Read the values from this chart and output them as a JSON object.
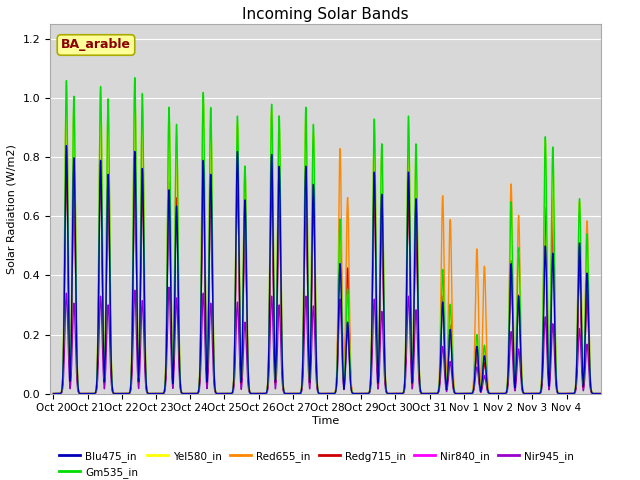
{
  "title": "Incoming Solar Bands",
  "xlabel": "Time",
  "ylabel": "Solar Radiation (W/m2)",
  "annotation": "BA_arable",
  "ylim": [
    0,
    1.25
  ],
  "background_color": "#d8d8d8",
  "legend_entries": [
    "Blu475_in",
    "Gm535_in",
    "Yel580_in",
    "Red655_in",
    "Redg715_in",
    "Nir840_in",
    "Nir945_in"
  ],
  "line_colors": [
    "#0000bb",
    "#00dd00",
    "#ffff00",
    "#ff8800",
    "#cc0000",
    "#ff00ff",
    "#9900cc"
  ],
  "line_widths": [
    1.0,
    1.0,
    1.0,
    1.0,
    1.0,
    1.0,
    1.0
  ],
  "xtick_labels": [
    "Oct 20",
    "Oct 21",
    "Oct 22",
    "Oct 23",
    "Oct 24",
    "Oct 25",
    "Oct 26",
    "Oct 27",
    "Oct 28",
    "Oct 29",
    "Oct 30",
    "Oct 31",
    "Nov 1",
    "Nov 2",
    "Nov 3",
    "Nov 4"
  ],
  "n_days": 16,
  "peak_heights": {
    "Blu475_in": [
      0.84,
      0.79,
      0.82,
      0.69,
      0.79,
      0.82,
      0.81,
      0.77,
      0.44,
      0.75,
      0.75,
      0.31,
      0.16,
      0.44,
      0.5,
      0.51
    ],
    "Gm535_in": [
      1.06,
      1.04,
      1.07,
      0.97,
      1.02,
      0.94,
      0.98,
      0.97,
      0.59,
      0.93,
      0.94,
      0.42,
      0.2,
      0.65,
      0.87,
      0.66
    ],
    "Yel580_in": [
      1.04,
      1.02,
      1.05,
      0.95,
      1.0,
      0.92,
      0.96,
      0.95,
      0.57,
      0.91,
      0.93,
      0.41,
      0.19,
      0.64,
      0.86,
      0.65
    ],
    "Red655_in": [
      1.04,
      1.02,
      1.03,
      0.94,
      0.99,
      0.9,
      0.95,
      0.94,
      0.83,
      0.9,
      0.9,
      0.67,
      0.49,
      0.71,
      0.74,
      0.65
    ],
    "Redg715_in": [
      0.8,
      0.78,
      0.78,
      0.72,
      0.77,
      0.75,
      0.73,
      0.73,
      0.59,
      0.7,
      0.68,
      0.33,
      0.15,
      0.45,
      0.63,
      0.45
    ],
    "Nir840_in": [
      0.8,
      0.78,
      0.78,
      0.72,
      0.77,
      0.75,
      0.73,
      0.73,
      0.59,
      0.7,
      0.68,
      0.33,
      0.15,
      0.45,
      0.63,
      0.45
    ],
    "Nir945_in": [
      0.34,
      0.33,
      0.35,
      0.36,
      0.34,
      0.31,
      0.33,
      0.33,
      0.32,
      0.32,
      0.33,
      0.16,
      0.09,
      0.21,
      0.26,
      0.22
    ]
  },
  "second_peak_fraction": {
    "Blu475_in": [
      0.95,
      0.94,
      0.93,
      0.92,
      0.94,
      0.8,
      0.95,
      0.92,
      0.55,
      0.9,
      0.88,
      0.7,
      0.8,
      0.75,
      0.95,
      0.8
    ],
    "Gm535_in": [
      0.95,
      0.96,
      0.95,
      0.94,
      0.95,
      0.82,
      0.96,
      0.94,
      0.6,
      0.91,
      0.9,
      0.72,
      0.82,
      0.76,
      0.96,
      0.82
    ],
    "Yel580_in": [
      0.94,
      0.95,
      0.94,
      0.93,
      0.94,
      0.81,
      0.95,
      0.93,
      0.59,
      0.9,
      0.89,
      0.71,
      0.81,
      0.75,
      0.95,
      0.81
    ],
    "Red655_in": [
      0.94,
      0.95,
      0.94,
      0.93,
      0.94,
      0.85,
      0.95,
      0.93,
      0.8,
      0.9,
      0.89,
      0.88,
      0.88,
      0.85,
      0.9,
      0.9
    ],
    "Redg715_in": [
      0.93,
      0.94,
      0.93,
      0.92,
      0.93,
      0.8,
      0.94,
      0.92,
      0.72,
      0.89,
      0.88,
      0.7,
      0.7,
      0.74,
      0.93,
      0.78
    ],
    "Nir840_in": [
      0.93,
      0.94,
      0.93,
      0.92,
      0.93,
      0.8,
      0.94,
      0.92,
      0.72,
      0.89,
      0.88,
      0.7,
      0.7,
      0.74,
      0.93,
      0.78
    ],
    "Nir945_in": [
      0.9,
      0.91,
      0.9,
      0.9,
      0.9,
      0.78,
      0.91,
      0.9,
      0.68,
      0.87,
      0.86,
      0.68,
      0.67,
      0.72,
      0.91,
      0.76
    ]
  },
  "grid_color": "#ffffff",
  "annotation_box_color": "#ffff99",
  "annotation_text_color": "#8B0000",
  "figsize": [
    6.4,
    4.8
  ],
  "dpi": 100
}
